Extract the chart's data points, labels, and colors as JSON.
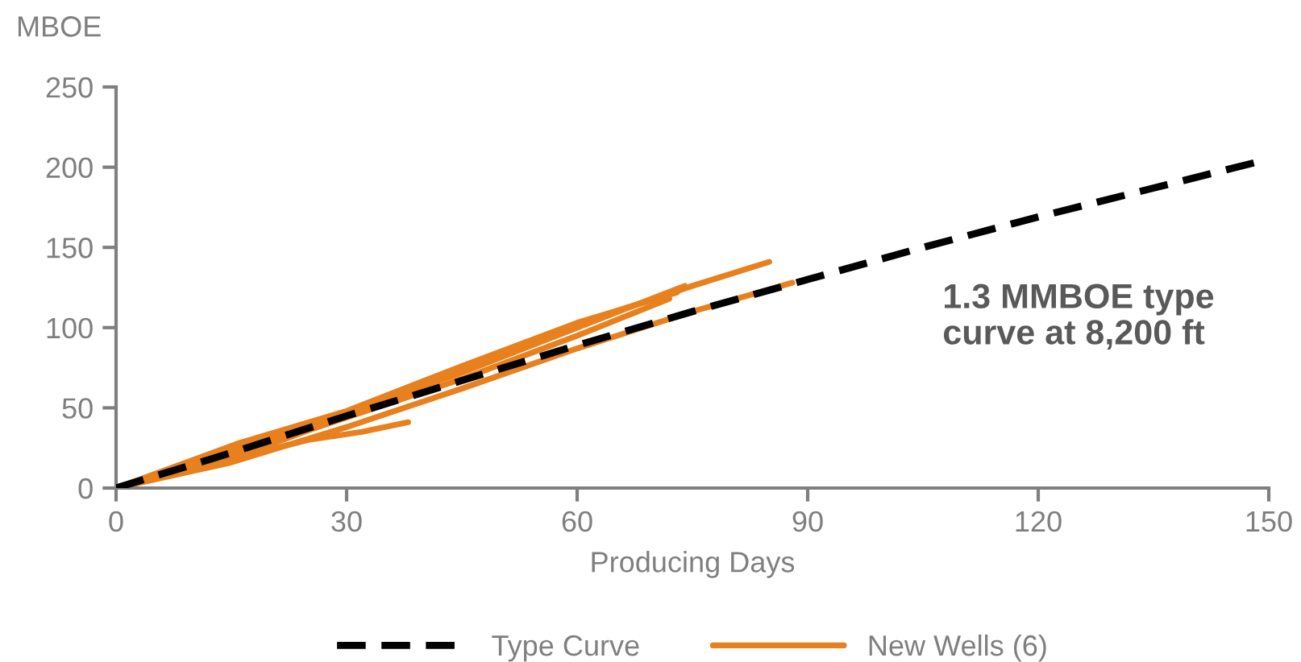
{
  "chart_data": {
    "type": "line",
    "ylabel": "MBOE",
    "xlabel": "Producing Days",
    "xlim": [
      0,
      150
    ],
    "xticks": [
      0,
      30,
      60,
      90,
      120,
      150
    ],
    "ylim": [
      0,
      250
    ],
    "yticks": [
      0,
      50,
      100,
      150,
      200,
      250
    ],
    "grid": false,
    "legend": "bottom",
    "marker": "none",
    "annotations": [
      "1.3 MMBOE type curve at 8,200 ft"
    ],
    "series": [
      {
        "name": "Type Curve",
        "color": "#000000",
        "line_style": "dashed",
        "x": [
          0,
          15,
          30,
          45,
          60,
          75,
          90,
          105,
          120,
          135,
          150
        ],
        "values": [
          0,
          22,
          45,
          67,
          89,
          110,
          130,
          150,
          169,
          187,
          205
        ]
      },
      {
        "name": "New Wells (6)",
        "color": "#e8801e",
        "line_style": "solid",
        "x": [
          0,
          7,
          15,
          30,
          45,
          60,
          75,
          85
        ],
        "values": [
          0,
          10,
          18,
          45,
          74,
          102,
          126,
          141
        ]
      },
      {
        "color": "#e8801e",
        "line_style": "solid",
        "x": [
          0,
          15,
          30,
          45,
          60,
          75,
          88
        ],
        "values": [
          0,
          16,
          38,
          62,
          87,
          110,
          128
        ]
      },
      {
        "color": "#e8801e",
        "line_style": "solid",
        "x": [
          0,
          7,
          15,
          25,
          32,
          38
        ],
        "values": [
          0,
          10,
          18,
          30,
          35,
          41
        ]
      },
      {
        "color": "#e8801e",
        "line_style": "solid",
        "x": [
          0,
          16,
          30,
          45,
          60,
          73
        ],
        "values": [
          0,
          28,
          48,
          76,
          103,
          122
        ]
      },
      {
        "color": "#e8801e",
        "line_style": "solid",
        "x": [
          0,
          16,
          30,
          45,
          60,
          74
        ],
        "values": [
          0,
          25,
          47,
          72,
          100,
          126
        ]
      },
      {
        "color": "#e8801e",
        "line_style": "solid",
        "x": [
          0,
          15,
          30,
          45,
          60,
          72
        ],
        "values": [
          0,
          20,
          44,
          68,
          95,
          118
        ]
      }
    ]
  }
}
